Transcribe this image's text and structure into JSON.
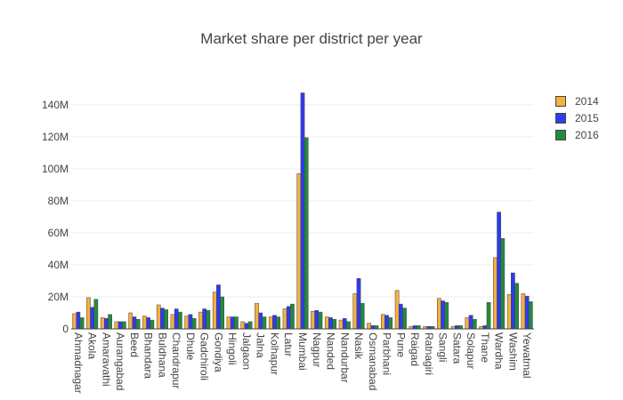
{
  "chart_data": {
    "type": "bar",
    "title": "Market share per district per year",
    "xlabel": "",
    "ylabel": "",
    "ylim": [
      0,
      150000000
    ],
    "yticks": [
      {
        "value": 0,
        "label": "0"
      },
      {
        "value": 20000000,
        "label": "20M"
      },
      {
        "value": 40000000,
        "label": "40M"
      },
      {
        "value": 60000000,
        "label": "60M"
      },
      {
        "value": 80000000,
        "label": "80M"
      },
      {
        "value": 100000000,
        "label": "100M"
      },
      {
        "value": 120000000,
        "label": "120M"
      },
      {
        "value": 140000000,
        "label": "140M"
      }
    ],
    "grid": true,
    "legend_position": "top-right",
    "categories": [
      "Ahmadnagar",
      "Akola",
      "Amaravathi",
      "Aurangabad",
      "Beed",
      "Bhandara",
      "Buldhana",
      "Chandrapur",
      "Dhule",
      "Gadchiroli",
      "Gondiya",
      "Hingoli",
      "Jalgaon",
      "Jalna",
      "Kolhapur",
      "Latur",
      "Mumbai",
      "Nagpur",
      "Nanded",
      "Nandurbar",
      "Nasik",
      "Osmanabad",
      "Parbhani",
      "Pune",
      "Raigad",
      "Ratnagiri",
      "Sangli",
      "Satara",
      "Solapur",
      "Thane",
      "Wardha",
      "Washim",
      "Yewatmal"
    ],
    "series": [
      {
        "name": "2014",
        "color": "#f5b041",
        "values": [
          9500000,
          19500000,
          7000000,
          4500000,
          10000000,
          8000000,
          15000000,
          9000000,
          8000000,
          10500000,
          23000000,
          7500000,
          4500000,
          16000000,
          7500000,
          12500000,
          97000000,
          11000000,
          7500000,
          5500000,
          22000000,
          3500000,
          9000000,
          24000000,
          1500000,
          1500000,
          19000000,
          1500000,
          7000000,
          1500000,
          44500000,
          21500000,
          22000000
        ]
      },
      {
        "name": "2015",
        "color": "#2e3bef",
        "values": [
          10500000,
          13500000,
          6500000,
          4500000,
          7500000,
          7000000,
          13000000,
          12500000,
          9000000,
          12500000,
          27500000,
          7500000,
          3500000,
          10000000,
          8500000,
          14000000,
          147500000,
          11500000,
          7000000,
          6500000,
          31500000,
          2000000,
          8500000,
          15500000,
          2000000,
          1500000,
          17500000,
          2000000,
          8500000,
          2000000,
          73000000,
          35000000,
          20500000
        ]
      },
      {
        "name": "2016",
        "color": "#248a3d",
        "values": [
          7000000,
          18500000,
          9000000,
          4500000,
          6000000,
          5500000,
          12000000,
          10500000,
          6500000,
          11500000,
          20000000,
          7500000,
          4500000,
          7500000,
          7500000,
          15500000,
          119500000,
          10500000,
          6000000,
          4500000,
          16000000,
          2000000,
          7000000,
          13000000,
          2000000,
          1500000,
          16500000,
          2000000,
          6000000,
          16500000,
          56500000,
          28500000,
          17000000
        ]
      }
    ]
  }
}
